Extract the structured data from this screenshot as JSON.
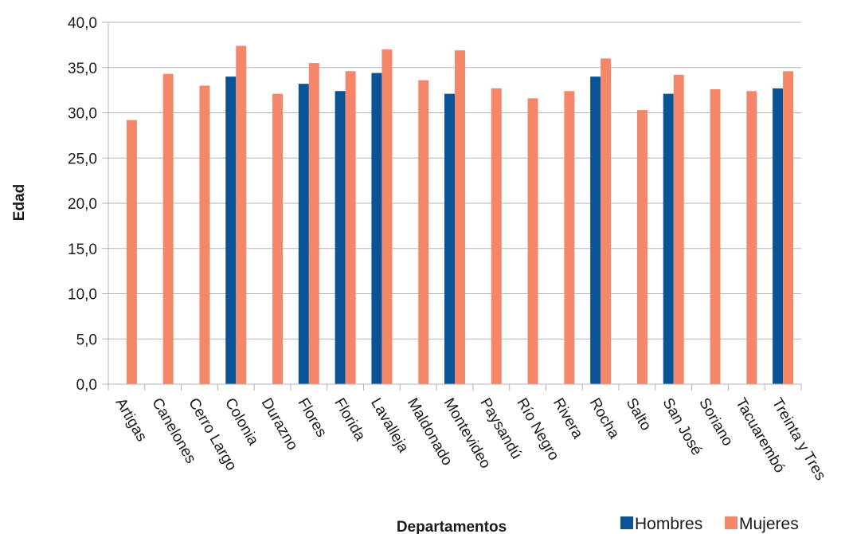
{
  "chart_data": {
    "type": "bar",
    "title": "",
    "xlabel": "Departamentos",
    "ylabel": "Edad",
    "ylim": [
      0,
      40
    ],
    "yticks": [
      "0,0",
      "5,0",
      "10,0",
      "15,0",
      "20,0",
      "25,0",
      "30,0",
      "35,0",
      "40,0"
    ],
    "grid": true,
    "legend_position": "bottom-right",
    "categories": [
      "Artigas",
      "Canelones",
      "Cerro Largo",
      "Colonia",
      "Durazno",
      "Flores",
      "Florida",
      "Lavalleja",
      "Maldonado",
      "Montevideo",
      "Paysandú",
      "Río Negro",
      "Rivera",
      "Rocha",
      "Salto",
      "San José",
      "Soriano",
      "Tacuarembó",
      "Treinta y Tres"
    ],
    "series": [
      {
        "name": "Hombres",
        "color": "#0a5394",
        "values": [
          null,
          null,
          null,
          34.0,
          null,
          33.2,
          32.4,
          34.4,
          null,
          32.1,
          null,
          null,
          null,
          34.0,
          null,
          32.1,
          null,
          null,
          32.7
        ]
      },
      {
        "name": "Mujeres",
        "color": "#f4876a",
        "values": [
          29.2,
          34.3,
          33.0,
          37.4,
          32.1,
          35.5,
          34.6,
          37.0,
          33.6,
          36.9,
          32.7,
          31.6,
          32.4,
          36.0,
          30.3,
          34.2,
          32.6,
          32.4,
          34.6
        ]
      }
    ]
  }
}
